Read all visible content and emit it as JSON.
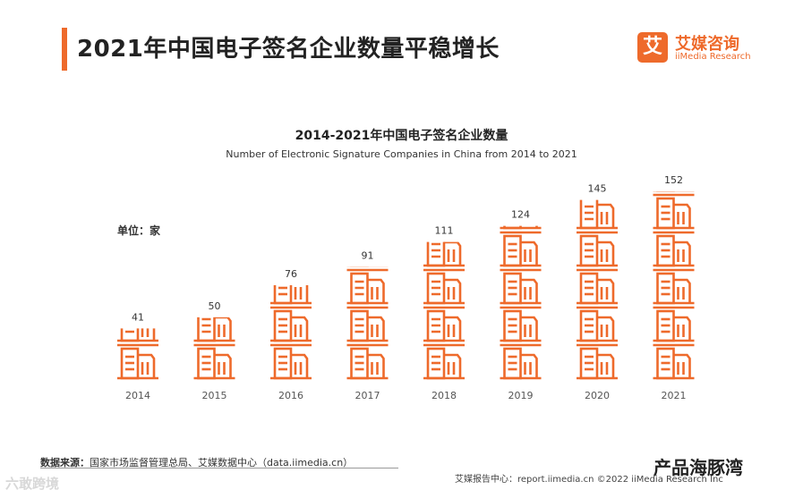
{
  "header": {
    "title": "2021年中国电子签名企业数量平稳增长",
    "logo_glyph": "艾",
    "logo_cn": "艾媒咨询",
    "logo_en": "iiMedia Research"
  },
  "colors": {
    "accent": "#ee6a2b",
    "bar": "#ee6a2b"
  },
  "chart_data": {
    "type": "bar",
    "title": "2014-2021年中国电子签名企业数量",
    "subtitle": "Number of Electronic Signature Companies in China from 2014 to 2021",
    "unit": "单位：家",
    "categories": [
      "2014",
      "2015",
      "2016",
      "2017",
      "2018",
      "2019",
      "2020",
      "2021"
    ],
    "values": [
      41,
      50,
      76,
      91,
      111,
      124,
      145,
      152
    ],
    "xlabel": "",
    "ylabel": "",
    "ylim": [
      0,
      152
    ],
    "grid": false,
    "legend": "none"
  },
  "footer": {
    "source_label": "数据来源：",
    "source_text": "国家市场监督管理总局、艾媒数据中心（data.iimedia.cn）",
    "report_text": "艾媒报告中心：report.iimedia.cn  ©2022  iiMedia Research  Inc",
    "watermark_left": "六敢跨境",
    "watermark_right": "产品海豚湾"
  }
}
